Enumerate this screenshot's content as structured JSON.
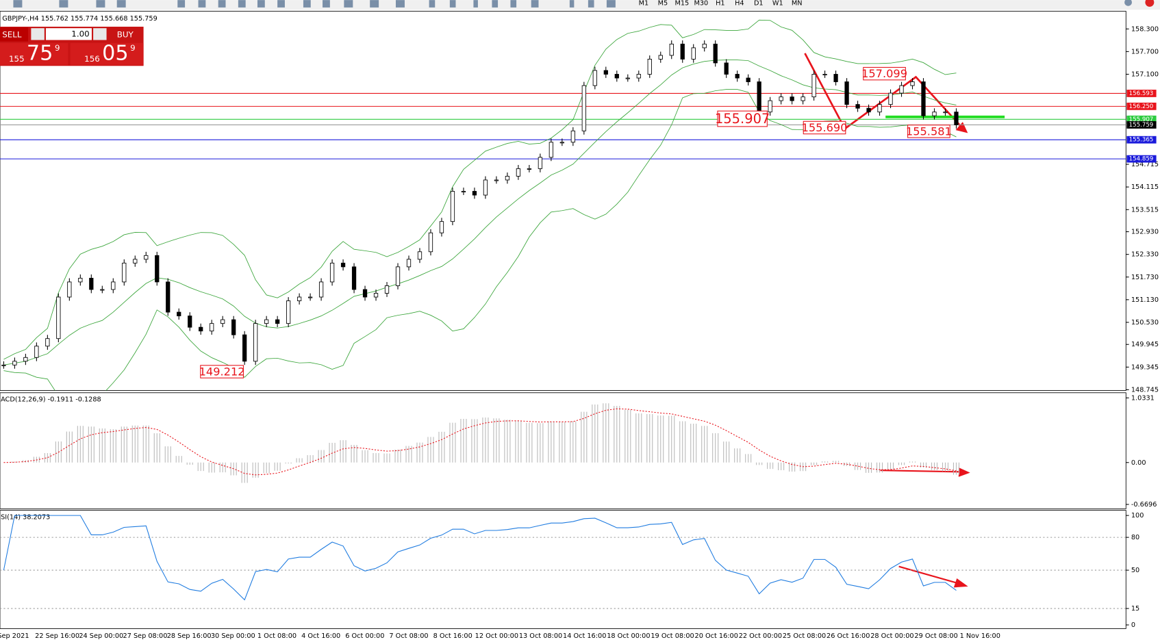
{
  "toolbar": {
    "timeframes": [
      "M1",
      "M5",
      "M15",
      "M30",
      "H1",
      "H4",
      "D1",
      "W1",
      "MN"
    ]
  },
  "trade_panel": {
    "sell": "SELL",
    "lots": "1.00",
    "buy": "BUY",
    "bid": {
      "small": "155",
      "big": "75",
      "sup": "9"
    },
    "ask": {
      "small": "156",
      "big": "05",
      "sup": "9"
    }
  },
  "chart": {
    "header": "GBPJPY-,H4 155.762 155.774 155.668 155.759",
    "ylim": [
      148.725,
      158.731
    ],
    "yticks": [
      {
        "value": 158.3,
        "label": "158.300"
      },
      {
        "value": 157.7,
        "label": "157.700"
      },
      {
        "value": 157.1,
        "label": "157.100"
      },
      {
        "value": 154.715,
        "label": "154.715"
      },
      {
        "value": 154.115,
        "label": "154.115"
      },
      {
        "value": 153.515,
        "label": "153.515"
      },
      {
        "value": 152.93,
        "label": "152.930"
      },
      {
        "value": 152.33,
        "label": "152.330"
      },
      {
        "value": 151.73,
        "label": "151.730"
      },
      {
        "value": 151.13,
        "label": "151.130"
      },
      {
        "value": 150.53,
        "label": "150.530"
      },
      {
        "value": 149.945,
        "label": "149.945"
      },
      {
        "value": 149.345,
        "label": "149.345"
      },
      {
        "value": 148.745,
        "label": "148.745"
      }
    ],
    "levels": [
      {
        "value": 156.593,
        "label": "156.593",
        "color": "#e8141c"
      },
      {
        "value": 156.25,
        "label": "156.250",
        "color": "#e8141c"
      },
      {
        "value": 155.907,
        "label": "155.907",
        "color": "#2ecc40"
      },
      {
        "value": 155.759,
        "label": "155.759",
        "color": "#000000"
      },
      {
        "value": 155.365,
        "label": "155.365",
        "color": "#1a1adb"
      },
      {
        "value": 154.859,
        "label": "154.859",
        "color": "#1a1adb"
      }
    ],
    "annotations": [
      "149.212",
      "155.907",
      "155.690",
      "157.099",
      "155.581"
    ],
    "close": [
      149.4,
      149.5,
      149.6,
      149.9,
      150.1,
      151.2,
      151.6,
      151.7,
      151.4,
      151.4,
      151.6,
      152.1,
      152.2,
      152.3,
      151.6,
      150.8,
      150.7,
      150.4,
      150.3,
      150.5,
      150.6,
      150.2,
      149.5,
      150.5,
      150.6,
      150.5,
      151.1,
      151.2,
      151.2,
      151.6,
      152.1,
      152.0,
      151.4,
      151.2,
      151.3,
      151.5,
      152.0,
      152.2,
      152.4,
      152.9,
      153.2,
      154.0,
      154.0,
      153.9,
      154.3,
      154.3,
      154.4,
      154.6,
      154.6,
      154.9,
      155.3,
      155.3,
      155.6,
      156.8,
      157.2,
      157.1,
      157.0,
      157.0,
      157.1,
      157.5,
      157.6,
      157.9,
      157.5,
      157.8,
      157.9,
      157.4,
      157.1,
      157.0,
      156.9,
      156.1,
      156.4,
      156.5,
      156.4,
      156.5,
      157.1,
      157.1,
      156.9,
      156.3,
      156.2,
      156.1,
      156.3,
      156.6,
      156.8,
      156.9,
      156.0,
      156.1,
      156.1,
      155.759
    ],
    "x_labels": [
      "Sep 2021",
      "22 Sep 16:00",
      "24 Sep 00:00",
      "27 Sep 08:00",
      "28 Sep 16:00",
      "30 Sep 00:00",
      "1 Oct 08:00",
      "4 Oct 16:00",
      "6 Oct 00:00",
      "7 Oct 08:00",
      "8 Oct 16:00",
      "12 Oct 00:00",
      "13 Oct 08:00",
      "14 Oct 16:00",
      "18 Oct 00:00",
      "19 Oct 08:00",
      "20 Oct 16:00",
      "22 Oct 00:00",
      "25 Oct 08:00",
      "26 Oct 16:00",
      "28 Oct 00:00",
      "29 Oct 08:00",
      "1 Nov 16:00"
    ]
  },
  "macd": {
    "label": "ACD(12,26,9) -0.1911 -0.1288",
    "ylim": [
      -0.74,
      1.092
    ],
    "yticks": [
      1.0331,
      {
        "value": 0,
        "label": "0.00"
      },
      -0.6696
    ]
  },
  "rsi": {
    "label": "SI(14) 38.2073",
    "ylim": [
      0,
      100
    ],
    "yticks": [
      100,
      80,
      50,
      15,
      0
    ],
    "levels": [
      80,
      50,
      15
    ]
  }
}
